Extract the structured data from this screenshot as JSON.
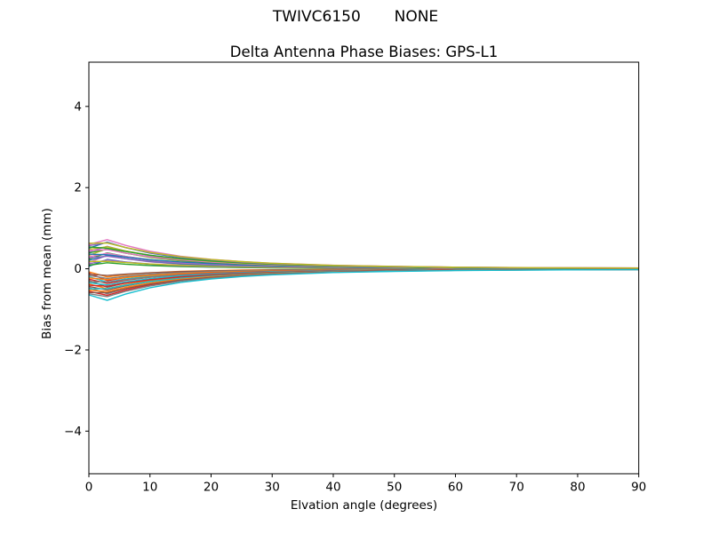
{
  "figure": {
    "suptitle": "TWIVC6150       NONE",
    "background": "#ffffff"
  },
  "chart_data": {
    "type": "line",
    "title": "Delta Antenna Phase Biases: GPS-L1",
    "xlabel": "Elvation angle (degrees)",
    "ylabel": "Bias from mean (mm)",
    "xlim": [
      0,
      90
    ],
    "ylim": [
      -5.05,
      5.09
    ],
    "grid": false,
    "legend": "none",
    "axis_color": "#000000",
    "line_width": 1.4,
    "xticks": {
      "values": [
        0,
        10,
        20,
        30,
        40,
        50,
        60,
        70,
        80,
        90
      ],
      "labels": [
        "0",
        "10",
        "20",
        "30",
        "40",
        "50",
        "60",
        "70",
        "80",
        "90"
      ]
    },
    "yticks": {
      "values": [
        -4,
        -2,
        0,
        2,
        4
      ],
      "labels": [
        "−4",
        "−2",
        "0",
        "2",
        "4"
      ]
    },
    "color_cycle": [
      "#1f77b4",
      "#ff7f0e",
      "#2ca02c",
      "#d62728",
      "#9467bd",
      "#8c564b",
      "#e377c2",
      "#7f7f7f",
      "#bcbd22",
      "#17becf"
    ],
    "series_model": {
      "description": "Bundle of antenna phase-bias difference curves. Line i has value y(x_j) = amplitudes[i]*decay[j] + wiggles[i]*wiggle_envelope[j] (mm); stroke color = color_cycle[i mod 10]. Curves fan out to about ±0.65 mm at 0° elevation and converge to ~0 mm by 90°.",
      "x": [
        0,
        3,
        6,
        10,
        15,
        20,
        25,
        30,
        40,
        50,
        60,
        75,
        90
      ],
      "decay": [
        1.0,
        0.9,
        0.76,
        0.6,
        0.45,
        0.35,
        0.27,
        0.21,
        0.13,
        0.09,
        0.06,
        0.04,
        0.03
      ],
      "wiggle_envelope": [
        0,
        0.22,
        0.15,
        0.09,
        0.05,
        0.03,
        0.02,
        0.015,
        0.01,
        0.008,
        0.006,
        0.004,
        0.003
      ],
      "amplitudes": [
        0.06,
        -0.075,
        0.09,
        -0.105,
        0.12,
        -0.135,
        0.15,
        -0.165,
        0.18,
        -0.195,
        0.21,
        -0.225,
        0.24,
        -0.255,
        0.27,
        -0.285,
        0.3,
        -0.315,
        0.33,
        -0.345,
        0.36,
        -0.375,
        0.39,
        -0.405,
        0.42,
        -0.435,
        0.45,
        -0.465,
        0.48,
        -0.495,
        0.51,
        -0.525,
        0.54,
        -0.555,
        0.57,
        -0.585,
        0.6,
        -0.615,
        0.63,
        -0.645
      ],
      "wiggles": [
        0.8,
        -0.6,
        0.3,
        -0.9,
        0.5,
        -0.2,
        0.9,
        -0.4,
        0.1,
        -0.7,
        0.6,
        -0.3,
        0.8,
        -0.6,
        0.3,
        -0.9,
        0.5,
        -0.2,
        0.9,
        -0.4,
        0.1,
        -0.7,
        0.6,
        -0.3,
        0.8,
        -0.6,
        0.3,
        -0.9,
        0.5,
        -0.2,
        0.9,
        -0.4,
        0.1,
        -0.7,
        0.6,
        -0.3,
        0.8,
        -0.6,
        0.3,
        -0.9
      ]
    }
  }
}
